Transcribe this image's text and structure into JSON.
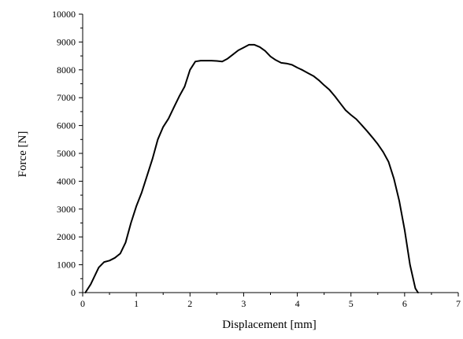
{
  "chart_data": {
    "type": "line",
    "title": "",
    "xlabel": "Displacement [mm]",
    "ylabel": "Force [N]",
    "xlim": [
      0,
      7
    ],
    "ylim": [
      0,
      10000
    ],
    "x_ticks": [
      "0",
      "1",
      "2",
      "3",
      "4",
      "5",
      "6",
      "7"
    ],
    "y_ticks": [
      "0",
      "1000",
      "2000",
      "3000",
      "4000",
      "5000",
      "6000",
      "7000",
      "8000",
      "9000",
      "10000"
    ],
    "grid": false,
    "line_color": "#000000",
    "series": [
      {
        "x": [
          0.05,
          0.15,
          0.3,
          0.4,
          0.5,
          0.6,
          0.7,
          0.8,
          0.9,
          1.0,
          1.1,
          1.2,
          1.3,
          1.4,
          1.5,
          1.6,
          1.7,
          1.8,
          1.9,
          2.0,
          2.1,
          2.2,
          2.3,
          2.4,
          2.5,
          2.6,
          2.7,
          2.8,
          2.9,
          3.0,
          3.1,
          3.2,
          3.3,
          3.4,
          3.5,
          3.6,
          3.7,
          3.8,
          3.9,
          4.0,
          4.1,
          4.2,
          4.3,
          4.4,
          4.5,
          4.6,
          4.7,
          4.8,
          4.9,
          5.0,
          5.1,
          5.2,
          5.3,
          5.4,
          5.5,
          5.6,
          5.7,
          5.8,
          5.9,
          6.0,
          6.1,
          6.2,
          6.25
        ],
        "y": [
          0,
          300,
          900,
          1100,
          1150,
          1250,
          1400,
          1800,
          2500,
          3100,
          3600,
          4200,
          4800,
          5500,
          5950,
          6250,
          6650,
          7050,
          7400,
          8000,
          8300,
          8330,
          8330,
          8330,
          8320,
          8300,
          8400,
          8550,
          8700,
          8800,
          8900,
          8900,
          8820,
          8680,
          8480,
          8350,
          8250,
          8230,
          8180,
          8080,
          7990,
          7880,
          7780,
          7630,
          7450,
          7280,
          7050,
          6800,
          6550,
          6380,
          6230,
          6020,
          5800,
          5570,
          5330,
          5050,
          4700,
          4100,
          3300,
          2250,
          1000,
          150,
          0
        ]
      }
    ]
  }
}
